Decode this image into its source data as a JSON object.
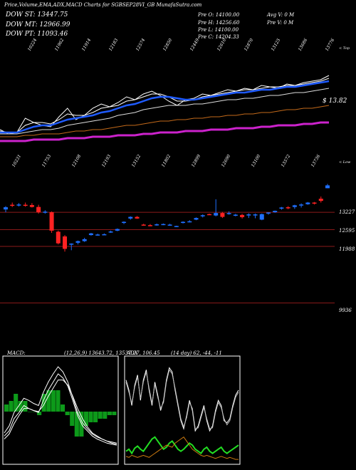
{
  "header": {
    "title": "Price,Volume,EMA,ADX,MACD Charts for SGBSEP28VI_GB MunafaSutra.com",
    "dow_st": "DOW ST: 13447.75",
    "dow_mt": "DOW MT: 12966.99",
    "dow_pt": "DOW PT: 11093.46",
    "ohlc": [
      "Pre   O: 14100.00",
      "Pre   H: 14256.60",
      "Pre   L: 14100.00",
      "Pre   C: 14204.33"
    ],
    "avg_vol": "Avg V: 0   M",
    "pre_vol": "Pre   V: 0   M"
  },
  "colors": {
    "bg": "#000000",
    "up": "#1f6fff",
    "down": "#ff2222",
    "sr_line": "#8b1a1a",
    "ema_blue": "#1f5bff",
    "ema_orange": "#c46a1a",
    "ema_magenta": "#cc22cc",
    "macd_fill": "#0d9a1a",
    "adx_green": "#22dd22",
    "adx_orange": "#cc7a10"
  },
  "chart_data": [
    {
      "type": "line",
      "title": "EMA",
      "top_labels": [
        "10224",
        "11962",
        "11914",
        "12183",
        "12574",
        "12850",
        "12449",
        "12610",
        "12870",
        "13125",
        "13686",
        "13776"
      ],
      "right_label": "< Top",
      "value_label": "$ 13.82",
      "x": [
        1,
        2,
        3,
        4,
        5,
        6,
        7,
        8,
        9,
        10,
        11,
        12,
        13,
        14,
        15,
        16,
        17,
        18,
        19,
        20,
        21,
        22,
        23,
        24,
        25,
        26,
        27,
        28,
        29,
        30,
        31,
        32,
        33,
        34,
        35,
        36,
        37,
        38,
        39,
        40
      ],
      "series": [
        {
          "name": "",
          "values": [
            10.4,
            10.1,
            10.2,
            11.2,
            10.9,
            10.7,
            10.6,
            11.3,
            11.9,
            11.1,
            11.4,
            11.9,
            12.2,
            12.0,
            12.3,
            12.7,
            12.5,
            12.9,
            13.1,
            12.8,
            12.4,
            12.1,
            12.5,
            12.6,
            12.9,
            12.8,
            13.0,
            13.2,
            13.1,
            13.3,
            13.2,
            13.5,
            13.4,
            13.3,
            13.6,
            13.5,
            13.7,
            13.8,
            13.9,
            14.2
          ]
        },
        {
          "name": "",
          "values": [
            10.3,
            10.2,
            10.2,
            10.7,
            10.9,
            10.9,
            10.8,
            11.1,
            11.5,
            11.4,
            11.4,
            11.6,
            11.9,
            12.0,
            12.1,
            12.4,
            12.5,
            12.7,
            12.9,
            12.9,
            12.7,
            12.4,
            12.4,
            12.5,
            12.7,
            12.8,
            12.9,
            13.0,
            13.1,
            13.2,
            13.2,
            13.3,
            13.4,
            13.4,
            13.5,
            13.5,
            13.6,
            13.7,
            13.8,
            14.0
          ]
        },
        {
          "name": "",
          "values": [
            10.2,
            10.2,
            10.2,
            10.4,
            10.6,
            10.7,
            10.7,
            10.9,
            11.1,
            11.2,
            11.3,
            11.4,
            11.6,
            11.7,
            11.9,
            12.1,
            12.2,
            12.4,
            12.6,
            12.7,
            12.7,
            12.6,
            12.5,
            12.5,
            12.6,
            12.7,
            12.8,
            12.9,
            13.0,
            13.0,
            13.1,
            13.2,
            13.2,
            13.3,
            13.4,
            13.4,
            13.5,
            13.6,
            13.7,
            13.8
          ]
        },
        {
          "name": "",
          "values": [
            10.1,
            10.1,
            10.1,
            10.2,
            10.3,
            10.4,
            10.4,
            10.5,
            10.7,
            10.8,
            10.9,
            11.0,
            11.1,
            11.2,
            11.4,
            11.5,
            11.6,
            11.8,
            11.9,
            12.0,
            12.1,
            12.1,
            12.1,
            12.2,
            12.2,
            12.3,
            12.4,
            12.5,
            12.5,
            12.6,
            12.6,
            12.7,
            12.8,
            12.8,
            12.9,
            13.0,
            13.0,
            13.1,
            13.2,
            13.3
          ]
        },
        {
          "name": "",
          "values": [
            9.9,
            9.9,
            9.9,
            10.0,
            10.0,
            10.1,
            10.1,
            10.1,
            10.2,
            10.3,
            10.3,
            10.4,
            10.4,
            10.5,
            10.6,
            10.7,
            10.7,
            10.8,
            10.9,
            11.0,
            11.0,
            11.1,
            11.1,
            11.2,
            11.2,
            11.3,
            11.3,
            11.4,
            11.4,
            11.5,
            11.5,
            11.6,
            11.6,
            11.7,
            11.8,
            11.8,
            11.9,
            11.9,
            12.0,
            12.1
          ]
        },
        {
          "name": "",
          "values": [
            9.6,
            9.6,
            9.6,
            9.6,
            9.7,
            9.7,
            9.7,
            9.7,
            9.8,
            9.8,
            9.8,
            9.9,
            9.9,
            9.9,
            10.0,
            10.0,
            10.0,
            10.1,
            10.1,
            10.2,
            10.2,
            10.2,
            10.3,
            10.3,
            10.3,
            10.4,
            10.4,
            10.4,
            10.5,
            10.5,
            10.5,
            10.6,
            10.6,
            10.7,
            10.7,
            10.7,
            10.8,
            10.8,
            10.9,
            10.9
          ]
        }
      ]
    },
    {
      "type": "candlestick",
      "title": "Price",
      "top_labels": [
        "10231",
        "11753",
        "12108",
        "12193",
        "13152",
        "11802",
        "12899",
        "12690",
        "13100",
        "13572",
        "13736"
      ],
      "right_label": "< Low",
      "y_labels": [
        "13227",
        "12595",
        "11988",
        "9936"
      ],
      "sr_levels": [
        13227,
        12595,
        11988,
        9936
      ],
      "ylim": [
        9300,
        14600
      ],
      "candles": [
        {
          "o": 13330,
          "h": 13450,
          "l": 13230,
          "c": 13410
        },
        {
          "o": 13500,
          "h": 13580,
          "l": 13420,
          "c": 13460
        },
        {
          "o": 13480,
          "h": 13560,
          "l": 13440,
          "c": 13510
        },
        {
          "o": 13500,
          "h": 13580,
          "l": 13430,
          "c": 13480
        },
        {
          "o": 13490,
          "h": 13560,
          "l": 13400,
          "c": 13420
        },
        {
          "o": 13420,
          "h": 13500,
          "l": 13180,
          "c": 13230
        },
        {
          "o": 13240,
          "h": 13300,
          "l": 13180,
          "c": 13250
        },
        {
          "o": 13230,
          "h": 13260,
          "l": 12480,
          "c": 12560
        },
        {
          "o": 12520,
          "h": 12560,
          "l": 12060,
          "c": 12100
        },
        {
          "o": 12350,
          "h": 12400,
          "l": 11800,
          "c": 11900
        },
        {
          "o": 12050,
          "h": 12100,
          "l": 11850,
          "c": 12090
        },
        {
          "o": 12120,
          "h": 12200,
          "l": 12060,
          "c": 12180
        },
        {
          "o": 12180,
          "h": 12300,
          "l": 12150,
          "c": 12250
        },
        {
          "o": 12400,
          "h": 12480,
          "l": 12380,
          "c": 12460
        },
        {
          "o": 12410,
          "h": 12450,
          "l": 12380,
          "c": 12420
        },
        {
          "o": 12420,
          "h": 12460,
          "l": 12400,
          "c": 12430
        },
        {
          "o": 12500,
          "h": 12560,
          "l": 12480,
          "c": 12530
        },
        {
          "o": 12560,
          "h": 12640,
          "l": 12540,
          "c": 12620
        },
        {
          "o": 12840,
          "h": 12900,
          "l": 12800,
          "c": 12880
        },
        {
          "o": 13000,
          "h": 13080,
          "l": 12960,
          "c": 13060
        },
        {
          "o": 13060,
          "h": 13090,
          "l": 12990,
          "c": 13000
        },
        {
          "o": 12780,
          "h": 12810,
          "l": 12740,
          "c": 12770
        },
        {
          "o": 12760,
          "h": 12800,
          "l": 12720,
          "c": 12740
        },
        {
          "o": 12780,
          "h": 12820,
          "l": 12740,
          "c": 12790
        },
        {
          "o": 12780,
          "h": 12820,
          "l": 12760,
          "c": 12800
        },
        {
          "o": 12760,
          "h": 12810,
          "l": 12740,
          "c": 12780
        },
        {
          "o": 12720,
          "h": 12740,
          "l": 12690,
          "c": 12730
        },
        {
          "o": 12840,
          "h": 12900,
          "l": 12820,
          "c": 12880
        },
        {
          "o": 12880,
          "h": 12940,
          "l": 12860,
          "c": 12900
        },
        {
          "o": 12960,
          "h": 13040,
          "l": 12940,
          "c": 13020
        },
        {
          "o": 13080,
          "h": 13150,
          "l": 13040,
          "c": 13120
        },
        {
          "o": 13160,
          "h": 13180,
          "l": 13140,
          "c": 13150
        },
        {
          "o": 13110,
          "h": 13700,
          "l": 13080,
          "c": 13200
        },
        {
          "o": 13200,
          "h": 13240,
          "l": 13020,
          "c": 13060
        },
        {
          "o": 13160,
          "h": 13260,
          "l": 13140,
          "c": 13200
        },
        {
          "o": 13130,
          "h": 13170,
          "l": 13080,
          "c": 13140
        },
        {
          "o": 13130,
          "h": 13170,
          "l": 13000,
          "c": 13050
        },
        {
          "o": 13130,
          "h": 13190,
          "l": 13020,
          "c": 13150
        },
        {
          "o": 13120,
          "h": 13180,
          "l": 13010,
          "c": 13150
        },
        {
          "o": 12960,
          "h": 13180,
          "l": 12940,
          "c": 13160
        },
        {
          "o": 13180,
          "h": 13230,
          "l": 13140,
          "c": 13220
        },
        {
          "o": 13230,
          "h": 13290,
          "l": 13210,
          "c": 13280
        },
        {
          "o": 13360,
          "h": 13420,
          "l": 13320,
          "c": 13400
        },
        {
          "o": 13410,
          "h": 13450,
          "l": 13340,
          "c": 13380
        },
        {
          "o": 13420,
          "h": 13500,
          "l": 13350,
          "c": 13480
        },
        {
          "o": 13480,
          "h": 13550,
          "l": 13400,
          "c": 13510
        },
        {
          "o": 13520,
          "h": 13600,
          "l": 13500,
          "c": 13580
        },
        {
          "o": 13580,
          "h": 13600,
          "l": 13510,
          "c": 13560
        },
        {
          "o": 13720,
          "h": 13800,
          "l": 13580,
          "c": 13640
        },
        {
          "o": 14100,
          "h": 14256,
          "l": 14100,
          "c": 14204
        }
      ]
    },
    {
      "type": "line",
      "title": "MACD:",
      "params": "(12,26,9) 13643.72,  13537.27, 106.45",
      "series": [
        {
          "name": "",
          "values": [
            0.25,
            0.3,
            0.42,
            0.48,
            0.55,
            0.52,
            0.5,
            0.48,
            0.6,
            0.7,
            0.78,
            0.86,
            0.82,
            0.74,
            0.6,
            0.45,
            0.35,
            0.3,
            0.25,
            0.22,
            0.2,
            0.18,
            0.17,
            0.16
          ]
        },
        {
          "name": "",
          "values": [
            0.22,
            0.27,
            0.37,
            0.45,
            0.52,
            0.52,
            0.5,
            0.49,
            0.55,
            0.64,
            0.72,
            0.8,
            0.8,
            0.75,
            0.64,
            0.52,
            0.42,
            0.34,
            0.28,
            0.25,
            0.22,
            0.2,
            0.18,
            0.17
          ]
        },
        {
          "name": "",
          "values": [
            0.28,
            0.35,
            0.48,
            0.55,
            0.62,
            0.6,
            0.57,
            0.55,
            0.68,
            0.78,
            0.86,
            0.93,
            0.88,
            0.78,
            0.63,
            0.48,
            0.38,
            0.32,
            0.27,
            0.24,
            0.22,
            0.2,
            0.19,
            0.18
          ]
        }
      ],
      "histogram": [
        0.02,
        0.03,
        0.05,
        0.03,
        0.03,
        0.0,
        0.0,
        -0.01,
        0.05,
        0.06,
        0.06,
        0.06,
        0.02,
        -0.01,
        -0.04,
        -0.07,
        -0.07,
        -0.04,
        -0.03,
        -0.03,
        -0.02,
        -0.02,
        -0.01,
        -0.01
      ]
    },
    {
      "type": "line",
      "title": "ADX",
      "params": "(14 day) 62, -44, -11",
      "series": [
        {
          "name": "",
          "values": [
            0.8,
            0.7,
            0.55,
            0.75,
            0.85,
            0.6,
            0.8,
            0.9,
            0.7,
            0.55,
            0.78,
            0.65,
            0.5,
            0.6,
            0.8,
            0.92,
            0.88,
            0.7,
            0.55,
            0.4,
            0.32,
            0.45,
            0.6,
            0.5,
            0.3,
            0.35,
            0.45,
            0.55,
            0.4,
            0.3,
            0.35,
            0.5,
            0.6,
            0.55,
            0.4,
            0.38,
            0.42,
            0.55,
            0.65,
            0.7
          ]
        },
        {
          "name": "",
          "values": [
            0.78,
            0.68,
            0.57,
            0.73,
            0.83,
            0.62,
            0.78,
            0.88,
            0.72,
            0.57,
            0.76,
            0.63,
            0.52,
            0.58,
            0.78,
            0.9,
            0.86,
            0.72,
            0.57,
            0.42,
            0.34,
            0.43,
            0.58,
            0.52,
            0.32,
            0.33,
            0.43,
            0.53,
            0.42,
            0.32,
            0.33,
            0.48,
            0.58,
            0.53,
            0.42,
            0.36,
            0.4,
            0.53,
            0.63,
            0.68
          ]
        },
        {
          "name": "",
          "values": [
            0.1,
            0.12,
            0.08,
            0.13,
            0.15,
            0.12,
            0.1,
            0.14,
            0.18,
            0.22,
            0.24,
            0.2,
            0.16,
            0.12,
            0.14,
            0.18,
            0.2,
            0.16,
            0.12,
            0.1,
            0.12,
            0.15,
            0.18,
            0.16,
            0.12,
            0.1,
            0.08,
            0.12,
            0.14,
            0.1,
            0.08,
            0.1,
            0.12,
            0.14,
            0.1,
            0.08,
            0.1,
            0.12,
            0.14,
            0.16
          ]
        },
        {
          "name": "",
          "values": [
            0.05,
            0.04,
            0.06,
            0.05,
            0.04,
            0.05,
            0.06,
            0.05,
            0.04,
            0.06,
            0.08,
            0.1,
            0.12,
            0.14,
            0.16,
            0.15,
            0.14,
            0.18,
            0.2,
            0.22,
            0.24,
            0.2,
            0.16,
            0.12,
            0.1,
            0.08,
            0.06,
            0.05,
            0.06,
            0.05,
            0.04,
            0.03,
            0.04,
            0.05,
            0.04,
            0.03,
            0.04,
            0.03,
            0.02,
            0.02
          ]
        }
      ]
    }
  ]
}
